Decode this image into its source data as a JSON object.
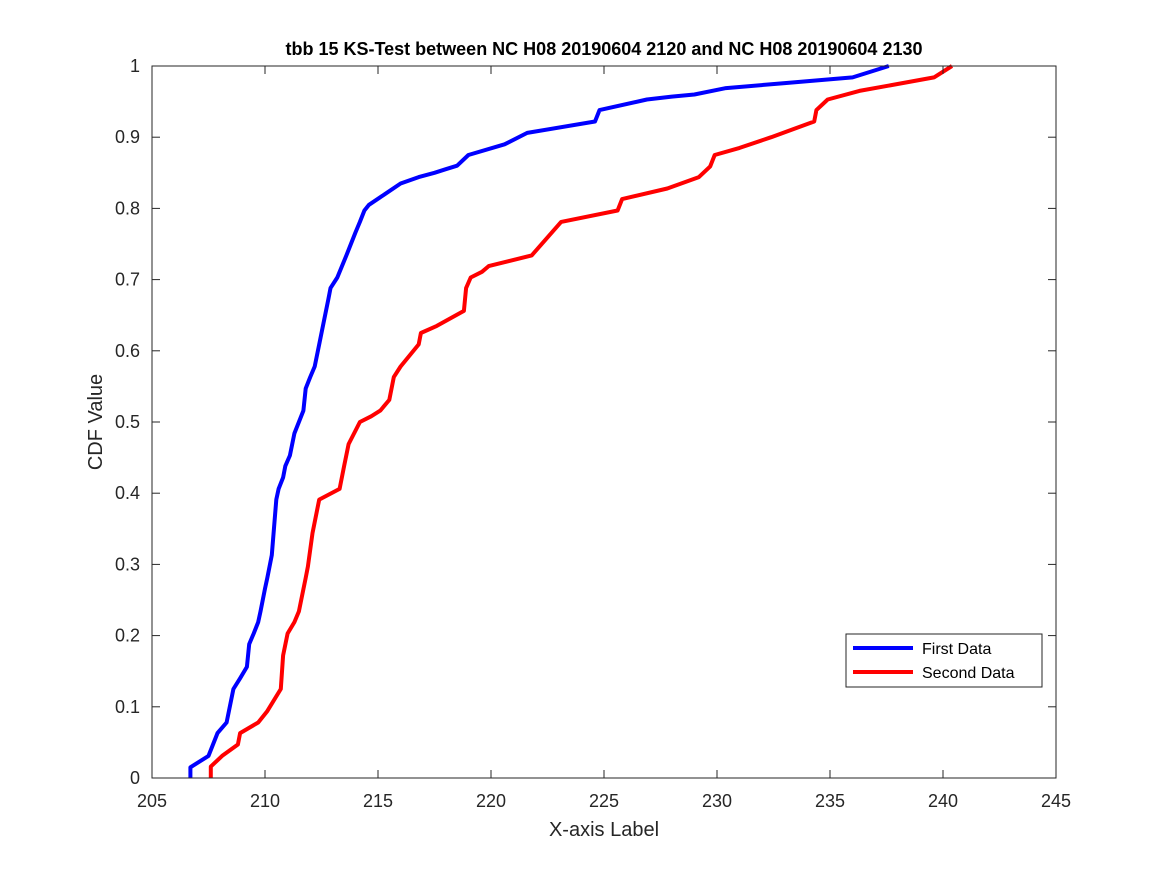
{
  "chart_data": {
    "type": "line",
    "title": "tbb 15 KS-Test between NC H08 20190604 2120 and NC H08 20190604 2130",
    "xlabel": "X-axis Label",
    "ylabel": "CDF Value",
    "xlim": [
      205,
      245
    ],
    "ylim": [
      0,
      1
    ],
    "xticks": [
      "205",
      "210",
      "215",
      "220",
      "225",
      "230",
      "235",
      "240",
      "245"
    ],
    "yticks": [
      "0",
      "0.1",
      "0.2",
      "0.3",
      "0.4",
      "0.5",
      "0.6",
      "0.7",
      "0.8",
      "0.9",
      "1"
    ],
    "grid": false,
    "legend_position": "lower-right",
    "series": [
      {
        "name": "First Data",
        "color": "#0000ff",
        "x": [
          206.7,
          206.7,
          207.5,
          207.9,
          208.3,
          208.6,
          208.9,
          209.2,
          209.3,
          209.5,
          209.7,
          209.8,
          210.0,
          210.1,
          210.3,
          210.5,
          210.6,
          210.8,
          210.9,
          211.1,
          211.3,
          211.5,
          211.7,
          211.8,
          212.0,
          212.2,
          212.4,
          212.6,
          212.8,
          212.9,
          213.2,
          213.6,
          213.8,
          214.0,
          214.2,
          214.4,
          214.6,
          215.3,
          216.0,
          216.8,
          217.5,
          218.0,
          218.5,
          219.0,
          220.6,
          221.6,
          224.6,
          224.8,
          226.9,
          228.0,
          229.0,
          230.4,
          233.0,
          236.0,
          237.6
        ],
        "y": [
          0.0,
          0.015,
          0.031,
          0.063,
          0.078,
          0.125,
          0.14,
          0.156,
          0.188,
          0.203,
          0.219,
          0.234,
          0.266,
          0.281,
          0.313,
          0.391,
          0.406,
          0.422,
          0.438,
          0.453,
          0.484,
          0.5,
          0.516,
          0.547,
          0.563,
          0.578,
          0.609,
          0.641,
          0.672,
          0.688,
          0.703,
          0.734,
          0.75,
          0.766,
          0.781,
          0.797,
          0.805,
          0.82,
          0.835,
          0.844,
          0.85,
          0.855,
          0.86,
          0.875,
          0.89,
          0.906,
          0.922,
          0.938,
          0.953,
          0.957,
          0.96,
          0.969,
          0.976,
          0.984,
          1.0
        ]
      },
      {
        "name": "Second Data",
        "color": "#ff0000",
        "x": [
          207.6,
          207.6,
          208.1,
          208.8,
          208.9,
          209.7,
          210.1,
          210.7,
          210.8,
          211.0,
          211.3,
          211.5,
          211.6,
          211.8,
          211.9,
          212.1,
          212.4,
          213.3,
          213.5,
          213.7,
          214.2,
          214.7,
          215.1,
          215.5,
          215.7,
          216.0,
          216.8,
          216.9,
          217.6,
          218.8,
          218.9,
          219.1,
          219.6,
          219.9,
          221.8,
          223.1,
          225.6,
          225.8,
          227.8,
          229.2,
          229.7,
          229.9,
          231.0,
          232.4,
          234.3,
          234.4,
          234.9,
          236.3,
          239.6,
          240.4
        ],
        "y": [
          0.0,
          0.016,
          0.031,
          0.047,
          0.063,
          0.078,
          0.094,
          0.125,
          0.172,
          0.203,
          0.219,
          0.234,
          0.25,
          0.281,
          0.297,
          0.344,
          0.391,
          0.406,
          0.438,
          0.469,
          0.5,
          0.508,
          0.516,
          0.531,
          0.563,
          0.578,
          0.609,
          0.625,
          0.635,
          0.656,
          0.688,
          0.703,
          0.711,
          0.719,
          0.734,
          0.781,
          0.797,
          0.813,
          0.828,
          0.844,
          0.859,
          0.875,
          0.885,
          0.9,
          0.922,
          0.938,
          0.953,
          0.965,
          0.984,
          1.0
        ]
      }
    ]
  }
}
